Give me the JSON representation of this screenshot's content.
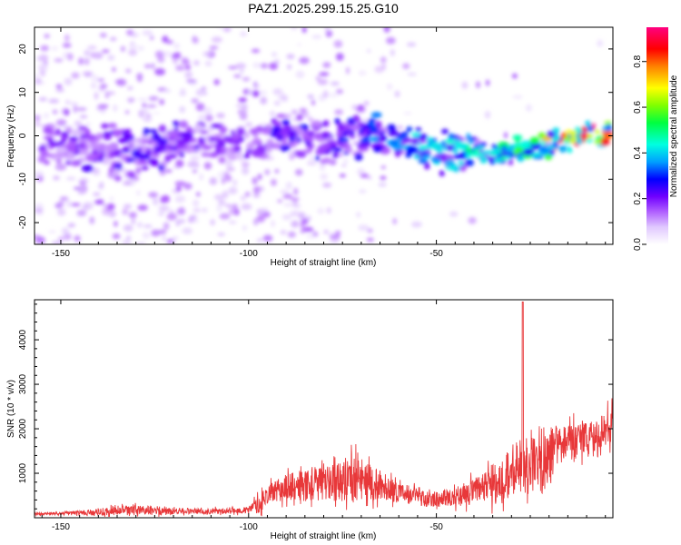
{
  "title": "PAZ1.2025.299.15.25.G10",
  "colors": {
    "snr_line": "#e8383a",
    "background": "#ffffff",
    "axes": "#000000"
  },
  "chart_data": [
    {
      "type": "heatmap",
      "name": "spectrogram",
      "xlabel": "Height of straight line (km)",
      "ylabel": "Frequency (Hz)",
      "xlim": [
        -157,
        -3
      ],
      "ylim": [
        -25,
        25
      ],
      "xticks": [
        -150,
        -100,
        -50
      ],
      "yticks": [
        -20,
        -10,
        0,
        10,
        20
      ],
      "colorbar": {
        "label": "Normalized spectral amplitude",
        "range": [
          0,
          0.95
        ],
        "ticks": [
          0.0,
          0.2,
          0.4,
          0.6,
          0.8
        ],
        "colormap": [
          "#ffffff",
          "#e0c8ff",
          "#b060ff",
          "#7000ff",
          "#0000ff",
          "#00a0ff",
          "#00ffe0",
          "#00ff40",
          "#80ff00",
          "#ffff00",
          "#ff8000",
          "#ff0000",
          "#ff0080"
        ]
      },
      "ridge": {
        "description": "dominant frequency band vs height",
        "x": [
          -150,
          -130,
          -110,
          -100,
          -90,
          -80,
          -70,
          -60,
          -50,
          -40,
          -30,
          -20,
          -10,
          -3
        ],
        "y": [
          -2,
          -3,
          -2,
          -1,
          0,
          -1,
          0,
          -2,
          -3,
          -4,
          -4,
          -2,
          0,
          0
        ],
        "peak_amplitude": [
          0.25,
          0.3,
          0.25,
          0.25,
          0.3,
          0.3,
          0.35,
          0.4,
          0.45,
          0.5,
          0.55,
          0.7,
          0.95,
          0.9
        ]
      }
    },
    {
      "type": "line",
      "name": "snr",
      "xlabel": "Height of straight line (km)",
      "ylabel": "SNR (10 * v/v)",
      "xlim": [
        -157,
        -3
      ],
      "ylim": [
        0,
        4900
      ],
      "xticks": [
        -150,
        -100,
        -50
      ],
      "yticks": [
        1000,
        2000,
        3000,
        4000
      ],
      "envelope": {
        "x": [
          -157,
          -150,
          -140,
          -135,
          -130,
          -125,
          -120,
          -110,
          -100,
          -97,
          -95,
          -90,
          -85,
          -80,
          -75,
          -72,
          -70,
          -65,
          -60,
          -55,
          -50,
          -45,
          -40,
          -35,
          -30,
          -27,
          -25,
          -22,
          -20,
          -18,
          -15,
          -10,
          -8,
          -5,
          -3
        ],
        "base": [
          80,
          90,
          120,
          140,
          160,
          150,
          140,
          140,
          160,
          300,
          500,
          650,
          700,
          750,
          800,
          850,
          800,
          700,
          550,
          450,
          400,
          450,
          550,
          700,
          900,
          1100,
          1200,
          1200,
          1300,
          1500,
          1600,
          1700,
          1800,
          1900,
          2200
        ],
        "amp": [
          60,
          70,
          150,
          250,
          200,
          220,
          150,
          120,
          150,
          450,
          400,
          600,
          750,
          800,
          950,
          1100,
          900,
          700,
          450,
          400,
          350,
          450,
          600,
          900,
          1300,
          1500,
          1400,
          1600,
          1400,
          1000,
          900,
          800,
          700,
          800,
          1000
        ]
      },
      "peak": {
        "x": -27,
        "y": 4850
      }
    }
  ]
}
